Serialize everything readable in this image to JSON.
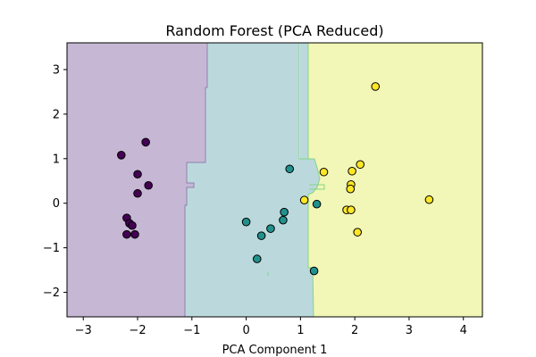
{
  "chart_data": {
    "type": "scatter",
    "title": "Random Forest (PCA Reduced)",
    "xlabel": "PCA Component 1",
    "ylabel": "",
    "xlim": [
      -3.3,
      4.35
    ],
    "ylim": [
      -2.55,
      3.6
    ],
    "xticks": [
      -3,
      -2,
      -1,
      0,
      1,
      2,
      3,
      4
    ],
    "yticks": [
      -2,
      -1,
      0,
      1,
      2,
      3
    ],
    "grid": false,
    "colors": {
      "region_0": "#c6b8d4",
      "region_1": "#bbd9dc",
      "region_2": "#f2f6b6",
      "boundary_0": "#8d7fb0",
      "boundary_1": "#86d483",
      "class_0": "#440154",
      "class_1": "#21918c",
      "class_2": "#fde725",
      "marker_edge": "#000000"
    },
    "decision_regions": [
      {
        "class": 0,
        "x_from": -3.3,
        "x_to": -1.1
      },
      {
        "class": 1,
        "x_from": -1.1,
        "x_to": 1.2
      },
      {
        "class": 2,
        "x_from": 1.2,
        "x_to": 4.35
      }
    ],
    "series": [
      {
        "class": 0,
        "x": [
          -1.85,
          -2.3,
          -2.0,
          -1.8,
          -2.0,
          -2.2,
          -2.15,
          -2.1,
          -2.2,
          -2.05
        ],
        "y": [
          1.37,
          1.08,
          0.65,
          0.4,
          0.22,
          -0.33,
          -0.45,
          -0.5,
          -0.7,
          -0.7
        ]
      },
      {
        "class": 1,
        "x": [
          0.8,
          1.3,
          0.7,
          0.68,
          0.0,
          0.45,
          0.28,
          0.2,
          1.25
        ],
        "y": [
          0.77,
          -0.02,
          -0.2,
          -0.38,
          -0.42,
          -0.57,
          -0.73,
          -1.25,
          -1.52
        ]
      },
      {
        "class": 2,
        "x": [
          2.38,
          2.1,
          1.95,
          1.43,
          1.93,
          1.92,
          1.07,
          3.37,
          1.85,
          1.93,
          2.05
        ],
        "y": [
          2.62,
          0.87,
          0.72,
          0.7,
          0.42,
          0.32,
          0.07,
          0.08,
          -0.15,
          -0.15,
          -0.65
        ]
      }
    ]
  }
}
